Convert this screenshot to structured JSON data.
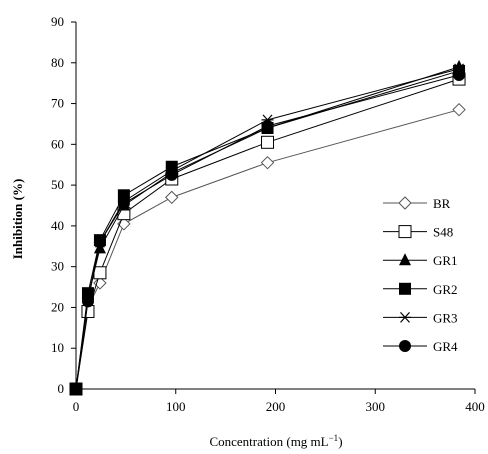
{
  "chart_data": {
    "type": "line",
    "title": "",
    "xlabel": "Concentration (mg mL",
    "xlabel_superscript": "−1",
    "xlabel_suffix": ")",
    "ylabel": "Inhibition (%)",
    "xlim": [
      0,
      400
    ],
    "ylim": [
      0,
      90
    ],
    "xticks": [
      "0",
      "100",
      "200",
      "300",
      "400"
    ],
    "yticks": [
      "0",
      "10",
      "20",
      "30",
      "40",
      "50",
      "60",
      "70",
      "80",
      "90"
    ],
    "grid": false,
    "legend_position": "right",
    "x": [
      0,
      12,
      24,
      48,
      96,
      192,
      384
    ],
    "series": [
      {
        "name": "BR",
        "marker": "diamond-open",
        "values": [
          0,
          20,
          26,
          40.5,
          47,
          55.5,
          68.5
        ]
      },
      {
        "name": "S48",
        "marker": "square-open",
        "values": [
          0,
          19,
          28.5,
          43,
          51.5,
          60.5,
          76
        ]
      },
      {
        "name": "GR1",
        "marker": "triangle-filled",
        "values": [
          0,
          22.5,
          34.5,
          45,
          53,
          64,
          79
        ]
      },
      {
        "name": "GR2",
        "marker": "square-filled",
        "values": [
          0,
          23.5,
          36.5,
          47.5,
          54.5,
          64,
          78
        ]
      },
      {
        "name": "GR3",
        "marker": "asterisk",
        "values": [
          0,
          22,
          36,
          46,
          53.5,
          66,
          78.5
        ]
      },
      {
        "name": "GR4",
        "marker": "circle-filled",
        "values": [
          0,
          21.5,
          36,
          45.5,
          52.5,
          64.5,
          77
        ]
      }
    ]
  }
}
